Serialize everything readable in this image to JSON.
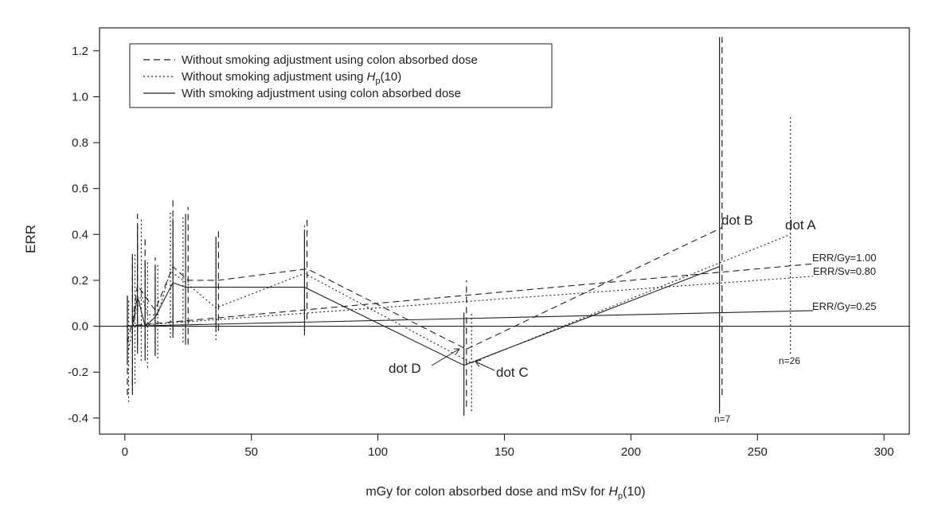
{
  "chart_data": {
    "type": "line",
    "xlabel": "mGy for colon absorbed dose and mSv for ",
    "xlabel_symbol": "H",
    "xlabel_sub": "p",
    "xlabel_tail": "(10)",
    "ylabel": "ERR",
    "xlim": [
      -10,
      310
    ],
    "ylim": [
      -0.47,
      1.3
    ],
    "x_ticks": [
      0,
      50,
      100,
      150,
      200,
      250,
      300
    ],
    "x_tick_labels": [
      "0",
      "50",
      "100",
      "150",
      "200",
      "250",
      "300"
    ],
    "y_ticks": [
      -0.4,
      -0.2,
      0.0,
      0.2,
      0.4,
      0.6,
      0.8,
      1.0,
      1.2
    ],
    "y_tick_labels": [
      "-0.4",
      "-0.2",
      "0.0",
      "0.2",
      "0.4",
      "0.6",
      "0.8",
      "1.0",
      "1.2"
    ],
    "legend_position": "top-left",
    "legend": [
      {
        "label": "Without smoking adjustment using colon absorbed dose",
        "style": "dashed"
      },
      {
        "label": "Without smoking adjustment using ",
        "symbol": "H",
        "sub": "p",
        "tail": "(10)",
        "style": "dotted"
      },
      {
        "label": "With smoking adjustment using colon absorbed dose",
        "style": "solid"
      }
    ],
    "series": [
      {
        "name": "Without smoking adjustment using colon absorbed dose",
        "style": "dashed",
        "points": [
          {
            "x": 1,
            "y": -0.07,
            "lo": -0.3,
            "hi": 0.15
          },
          {
            "x": 3,
            "y": 0.02,
            "lo": -0.3,
            "hi": 0.33
          },
          {
            "x": 5,
            "y": 0.18,
            "lo": -0.12,
            "hi": 0.49
          },
          {
            "x": 8,
            "y": 0.13,
            "lo": -0.1,
            "hi": 0.38
          },
          {
            "x": 12,
            "y": 0.07,
            "lo": -0.12,
            "hi": 0.3
          },
          {
            "x": 19,
            "y": 0.26,
            "lo": -0.02,
            "hi": 0.55
          },
          {
            "x": 25,
            "y": 0.2,
            "lo": -0.08,
            "hi": 0.52
          },
          {
            "x": 37,
            "y": 0.2,
            "lo": -0.02,
            "hi": 0.42
          },
          {
            "x": 72,
            "y": 0.25,
            "lo": 0.03,
            "hi": 0.48
          },
          {
            "x": 135,
            "y": -0.1,
            "lo": -0.35,
            "hi": 0.2
          },
          {
            "x": 236,
            "y": 0.43,
            "lo": -0.3,
            "hi": 1.26
          }
        ]
      },
      {
        "name": "Without smoking adjustment using Hp(10)",
        "style": "dotted",
        "points": [
          {
            "x": 1.5,
            "y": -0.1,
            "lo": -0.33,
            "hi": 0.12
          },
          {
            "x": 4,
            "y": 0.04,
            "lo": -0.25,
            "hi": 0.32
          },
          {
            "x": 6.5,
            "y": 0.14,
            "lo": -0.15,
            "hi": 0.47
          },
          {
            "x": 9,
            "y": 0.05,
            "lo": -0.18,
            "hi": 0.29
          },
          {
            "x": 13,
            "y": 0.05,
            "lo": -0.14,
            "hi": 0.27
          },
          {
            "x": 18,
            "y": 0.24,
            "lo": -0.05,
            "hi": 0.5
          },
          {
            "x": 23,
            "y": 0.2,
            "lo": -0.07,
            "hi": 0.48
          },
          {
            "x": 36,
            "y": 0.08,
            "lo": -0.06,
            "hi": 0.38
          },
          {
            "x": 71,
            "y": 0.23,
            "lo": -0.02,
            "hi": 0.44
          },
          {
            "x": 137,
            "y": -0.16,
            "lo": -0.37,
            "hi": 0.06
          },
          {
            "x": 263,
            "y": 0.4,
            "lo": -0.12,
            "hi": 0.92
          }
        ]
      },
      {
        "name": "With smoking adjustment using colon absorbed dose",
        "style": "solid",
        "points": [
          {
            "x": 1,
            "y": 0.0,
            "lo": -0.17,
            "hi": 0.13
          },
          {
            "x": 3,
            "y": 0.0,
            "lo": -0.28,
            "hi": 0.3
          },
          {
            "x": 5,
            "y": 0.13,
            "lo": -0.1,
            "hi": 0.44
          },
          {
            "x": 8,
            "y": 0.0,
            "lo": -0.15,
            "hi": 0.28
          },
          {
            "x": 12,
            "y": 0.04,
            "lo": -0.13,
            "hi": 0.26
          },
          {
            "x": 19,
            "y": 0.19,
            "lo": -0.05,
            "hi": 0.47
          },
          {
            "x": 24,
            "y": 0.17,
            "lo": -0.08,
            "hi": 0.49
          },
          {
            "x": 36,
            "y": 0.17,
            "lo": -0.02,
            "hi": 0.39
          },
          {
            "x": 71,
            "y": 0.17,
            "lo": -0.04,
            "hi": 0.42
          },
          {
            "x": 134,
            "y": -0.17,
            "lo": -0.39,
            "hi": 0.06
          },
          {
            "x": 235,
            "y": 0.26,
            "lo": -0.38,
            "hi": 1.26
          }
        ]
      }
    ],
    "reference_lines": [
      {
        "label": "ERR/Gy=1.00",
        "slope": 0.001,
        "style": "dashed",
        "x_end": 272
      },
      {
        "label": "ERR/Sv=0.80",
        "slope": 0.0008,
        "style": "dotted",
        "x_end": 272
      },
      {
        "label": "ERR/Gy=0.25",
        "slope": 0.00025,
        "style": "solid",
        "x_end": 272
      }
    ],
    "annotations": [
      {
        "text": "dot A",
        "x": 265,
        "y": 0.42
      },
      {
        "text": "dot B",
        "x": 238,
        "y": 0.44
      },
      {
        "text": "dot C",
        "x": 148,
        "y": -0.2
      },
      {
        "text": "dot D",
        "x": 104,
        "y": -0.19
      },
      {
        "text": "n=7",
        "x": 237,
        "y": -0.4
      },
      {
        "text": "n=26",
        "x": 263,
        "y": -0.16
      }
    ]
  }
}
